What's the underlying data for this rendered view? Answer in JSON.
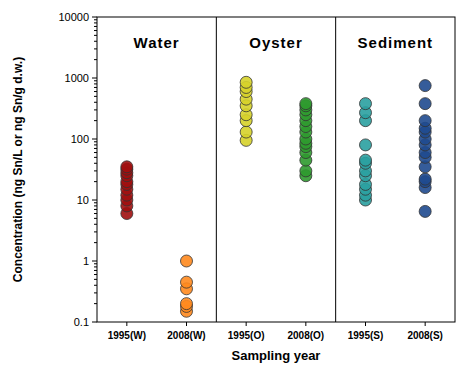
{
  "chart_data": {
    "type": "scatter",
    "log": "y",
    "y_label": "Concentration (ng Sn/L or ng Sn/g d.w.)",
    "x_label": "Sampling year",
    "annotations": [
      "Water",
      "Oyster",
      "Sediment"
    ],
    "categories": [
      "1995(W)",
      "2008(W)",
      "1995(O)",
      "2008(O)",
      "1995(S)",
      "2008(S)"
    ],
    "values": [
      [
        6,
        8,
        10,
        12,
        15,
        18,
        20,
        25,
        28,
        32,
        35
      ],
      [
        0.15,
        0.18,
        0.2,
        0.35,
        0.45,
        1.0
      ],
      [
        95,
        130,
        200,
        250,
        350,
        450,
        600,
        700,
        850
      ],
      [
        25,
        30,
        45,
        60,
        75,
        85,
        100,
        130,
        160,
        200,
        250,
        300,
        350,
        380
      ],
      [
        10,
        12,
        15,
        18,
        25,
        30,
        40,
        45,
        80,
        200,
        270,
        380
      ],
      [
        6.5,
        16,
        20,
        22,
        35,
        50,
        60,
        80,
        100,
        130,
        150,
        200,
        380,
        750
      ]
    ],
    "colors": [
      "#a01010",
      "#ff8a1e",
      "#d6d22a",
      "#2f9a2f",
      "#2aa0a0",
      "#1f4a8f"
    ],
    "ylim": [
      0.1,
      10000
    ],
    "yticks": [
      0.1,
      1,
      10,
      100,
      1000,
      10000
    ]
  }
}
